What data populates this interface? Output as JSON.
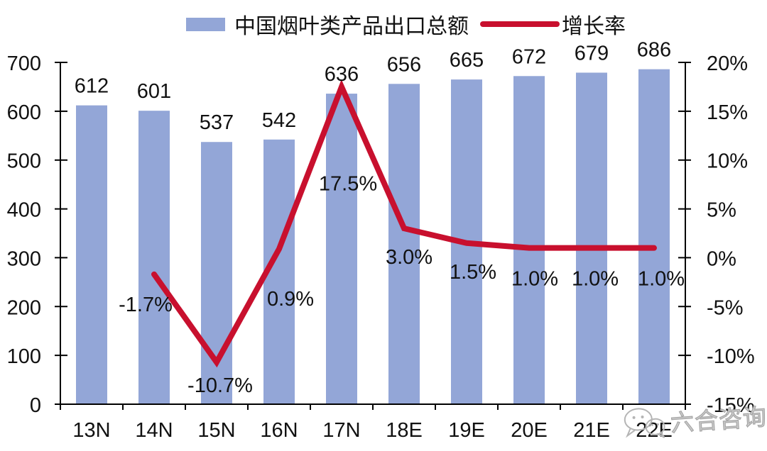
{
  "legend": {
    "bar_label": "中国烟叶类产品出口总额",
    "line_label": "增长率"
  },
  "watermark": {
    "text": "六合咨询",
    "icon": "wechat-icon"
  },
  "colors": {
    "bar": "#93A6D7",
    "line": "#C8102E",
    "axis": "#000000",
    "text": "#111111",
    "watermark": "#B5B5B5"
  },
  "chart_data": {
    "type": "bar",
    "subtype": "bar+line combo",
    "title": "",
    "categories": [
      "13N",
      "14N",
      "15N",
      "16N",
      "17N",
      "18E",
      "19E",
      "20E",
      "21E",
      "22E"
    ],
    "series": [
      {
        "name": "中国烟叶类产品出口总额",
        "type": "bar",
        "axis": "left",
        "values": [
          612,
          601,
          537,
          542,
          636,
          656,
          665,
          672,
          679,
          686
        ],
        "data_labels": [
          "612",
          "601",
          "537",
          "542",
          "636",
          "656",
          "665",
          "672",
          "679",
          "686"
        ]
      },
      {
        "name": "增长率",
        "type": "line",
        "axis": "right",
        "values": [
          null,
          -1.7,
          -10.7,
          0.9,
          17.5,
          3.0,
          1.5,
          1.0,
          1.0,
          1.0
        ],
        "data_labels": [
          null,
          "-1.7%",
          "-10.7%",
          "0.9%",
          "17.5%",
          "3.0%",
          "1.5%",
          "1.0%",
          "1.0%",
          "1.0%"
        ]
      }
    ],
    "left_axis": {
      "min": 0,
      "max": 700,
      "step": 100,
      "tick_labels": [
        "0",
        "100",
        "200",
        "300",
        "400",
        "500",
        "600",
        "700"
      ]
    },
    "right_axis": {
      "min": -15,
      "max": 20,
      "step": 5,
      "tick_labels": [
        "-15%",
        "-10%",
        "-5%",
        "0%",
        "5%",
        "10%",
        "15%",
        "20%"
      ]
    },
    "grid": false,
    "legend_position": "top"
  }
}
